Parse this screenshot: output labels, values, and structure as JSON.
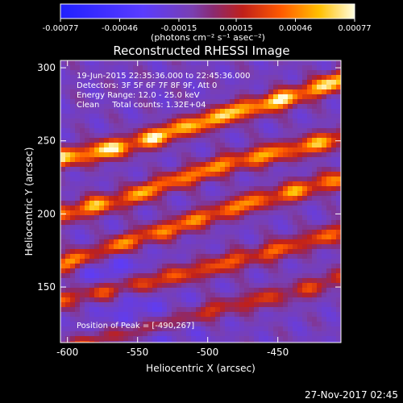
{
  "chart_data": {
    "type": "heatmap",
    "title": "Reconstructed RHESSI Image",
    "xlabel": "Heliocentric X (arcsec)",
    "ylabel": "Heliocentric Y (arcsec)",
    "xlim": [
      -605,
      -405
    ],
    "ylim": [
      112,
      305
    ],
    "x_ticks": [
      -600,
      -550,
      -500,
      -450
    ],
    "x_tick_labels": [
      "-600",
      "-550",
      "-500",
      "-450"
    ],
    "y_ticks": [
      150,
      200,
      250,
      300
    ],
    "y_tick_labels": [
      "150",
      "200",
      "250",
      "300"
    ],
    "colorbar": {
      "range": [
        -0.00077,
        0.00077
      ],
      "ticks": [
        -0.00077,
        -0.00046,
        -0.00015,
        0.00015,
        0.00046,
        0.00077
      ],
      "tick_labels": [
        "-0.00077",
        "-0.00046",
        "-0.00015",
        "0.00015",
        "0.00046",
        "0.00077"
      ],
      "unit_label": "(photons cm⁻² s⁻¹ asec⁻²)"
    },
    "annotations": [
      "19-Jun-2015 22:35:36.000 to 22:45:36.000",
      "Detectors: 3F 5F 6F 7F 8F 9F, Att 0",
      "Energy Range: 12.0 - 25.0 keV",
      "Clean     Total counts: 1.32E+04"
    ],
    "peak_label": "Position of Peak = [-490,267]",
    "peak": [
      -490,
      267
    ],
    "ridges": [
      {
        "x": [
          -605,
          -560,
          -520,
          -480,
          -440,
          -405
        ],
        "y": [
          238,
          246,
          258,
          270,
          280,
          292
        ],
        "peak": 1.0
      },
      {
        "x": [
          -605,
          -560,
          -520,
          -480,
          -440,
          -405
        ],
        "y": [
          200,
          210,
          224,
          236,
          244,
          252
        ],
        "peak": 0.8
      },
      {
        "x": [
          -605,
          -560,
          -520,
          -480,
          -440,
          -405
        ],
        "y": [
          165,
          180,
          192,
          205,
          215,
          224
        ],
        "peak": 0.75
      },
      {
        "x": [
          -560,
          -520,
          -480,
          -440,
          -405
        ],
        "y": [
          150,
          158,
          168,
          178,
          188
        ],
        "peak": 0.6
      },
      {
        "x": [
          -520,
          -480,
          -440,
          -405
        ],
        "y": [
          128,
          138,
          146,
          156
        ],
        "peak": 0.45
      }
    ]
  },
  "footer": {
    "date": "27-Nov-2017 02:45"
  }
}
